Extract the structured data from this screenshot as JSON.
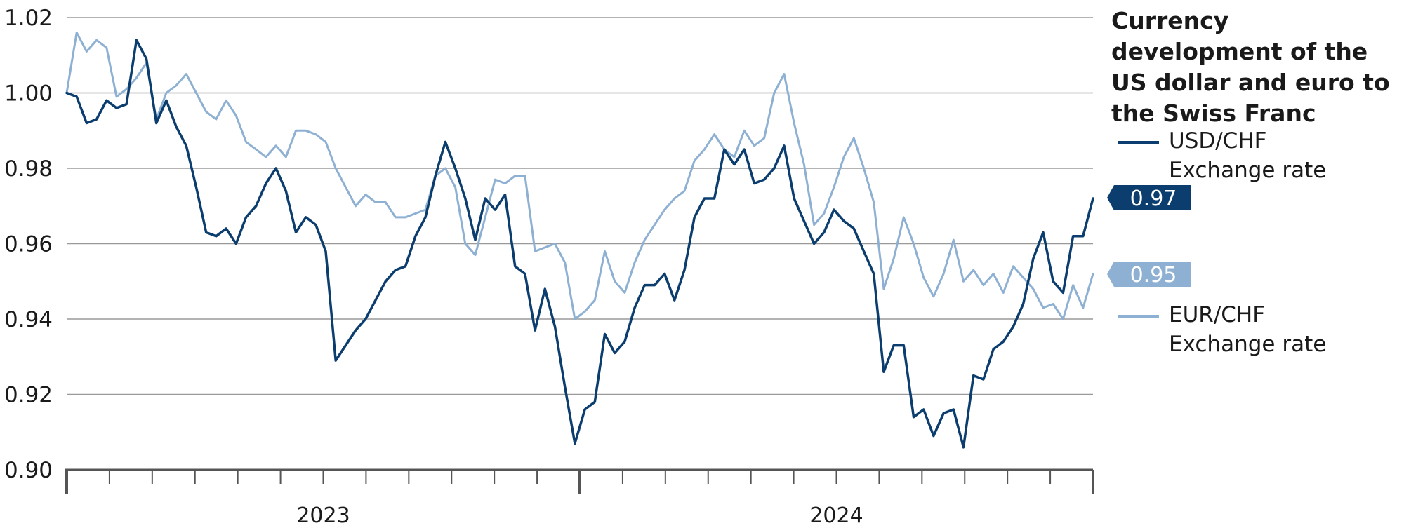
{
  "chart_data": {
    "type": "line",
    "title": "Currency development of the US dollar and euro to the Swiss Franc",
    "ylim": [
      0.9,
      1.02
    ],
    "yticks": [
      "1.02",
      "1.00",
      "0.98",
      "0.96",
      "0.94",
      "0.92",
      "0.90"
    ],
    "ytick_values": [
      1.02,
      1.0,
      0.98,
      0.96,
      0.94,
      0.92,
      0.9
    ],
    "x_label_years": [
      "2023",
      "2024"
    ],
    "grid": true,
    "legend_placement": "right",
    "series": [
      {
        "name": "USD/CHF Exchange rate",
        "color": "#0b3d6e",
        "end_label": "0.97",
        "values": [
          1.0,
          0.999,
          0.992,
          0.993,
          0.998,
          0.996,
          0.997,
          1.014,
          1.009,
          0.992,
          0.998,
          0.991,
          0.986,
          0.975,
          0.963,
          0.962,
          0.964,
          0.96,
          0.967,
          0.97,
          0.976,
          0.98,
          0.974,
          0.963,
          0.967,
          0.965,
          0.958,
          0.929,
          0.933,
          0.937,
          0.94,
          0.945,
          0.95,
          0.953,
          0.954,
          0.962,
          0.967,
          0.978,
          0.987,
          0.98,
          0.972,
          0.961,
          0.972,
          0.969,
          0.973,
          0.954,
          0.952,
          0.937,
          0.948,
          0.938,
          0.922,
          0.907,
          0.916,
          0.918,
          0.936,
          0.931,
          0.934,
          0.943,
          0.949,
          0.949,
          0.952,
          0.945,
          0.953,
          0.967,
          0.972,
          0.972,
          0.985,
          0.981,
          0.985,
          0.976,
          0.977,
          0.98,
          0.986,
          0.972,
          0.966,
          0.96,
          0.963,
          0.969,
          0.966,
          0.964,
          0.958,
          0.952,
          0.926,
          0.933,
          0.933,
          0.914,
          0.916,
          0.909,
          0.915,
          0.916,
          0.906,
          0.925,
          0.924,
          0.932,
          0.934,
          0.938,
          0.944,
          0.956,
          0.963,
          0.95,
          0.947,
          0.962,
          0.962,
          0.972
        ]
      },
      {
        "name": "EUR/CHF Exchange rate",
        "color": "#8eb0d2",
        "end_label": "0.95",
        "values": [
          1.0,
          1.016,
          1.011,
          1.014,
          1.012,
          0.999,
          1.001,
          1.004,
          1.008,
          0.993,
          1.0,
          1.002,
          1.005,
          1.0,
          0.995,
          0.993,
          0.998,
          0.994,
          0.987,
          0.985,
          0.983,
          0.986,
          0.983,
          0.99,
          0.99,
          0.989,
          0.987,
          0.98,
          0.975,
          0.97,
          0.973,
          0.971,
          0.971,
          0.967,
          0.967,
          0.968,
          0.969,
          0.978,
          0.98,
          0.975,
          0.96,
          0.957,
          0.967,
          0.977,
          0.976,
          0.978,
          0.978,
          0.958,
          0.959,
          0.96,
          0.955,
          0.94,
          0.942,
          0.945,
          0.958,
          0.95,
          0.947,
          0.955,
          0.961,
          0.965,
          0.969,
          0.972,
          0.974,
          0.982,
          0.985,
          0.989,
          0.985,
          0.983,
          0.99,
          0.986,
          0.988,
          1.0,
          1.005,
          0.992,
          0.981,
          0.965,
          0.968,
          0.975,
          0.983,
          0.988,
          0.98,
          0.971,
          0.948,
          0.956,
          0.967,
          0.96,
          0.951,
          0.946,
          0.952,
          0.961,
          0.95,
          0.953,
          0.949,
          0.952,
          0.947,
          0.954,
          0.951,
          0.948,
          0.943,
          0.944,
          0.94,
          0.949,
          0.943,
          0.952
        ]
      }
    ]
  },
  "legend": {
    "usd_label": "USD/CHF\nExchange rate",
    "eur_label": "EUR/CHF\nExchange rate"
  }
}
